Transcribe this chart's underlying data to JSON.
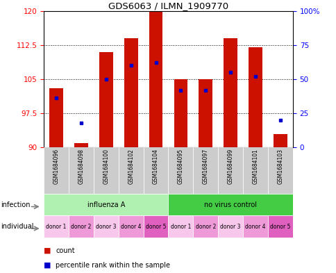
{
  "title": "GDS6063 / ILMN_1909770",
  "samples": [
    "GSM1684096",
    "GSM1684098",
    "GSM1684100",
    "GSM1684102",
    "GSM1684104",
    "GSM1684095",
    "GSM1684097",
    "GSM1684099",
    "GSM1684101",
    "GSM1684103"
  ],
  "count_values": [
    103,
    91,
    111,
    114,
    120,
    105,
    105,
    114,
    112,
    93
  ],
  "percentile_values": [
    36,
    18,
    50,
    60,
    62,
    42,
    42,
    55,
    52,
    20
  ],
  "y_min": 90,
  "y_max": 120,
  "y_left_ticks": [
    90,
    97.5,
    105,
    112.5,
    120
  ],
  "y_right_ticks": [
    0,
    25,
    50,
    75,
    100
  ],
  "infection_groups": [
    {
      "label": "influenza A",
      "start": 0,
      "end": 5,
      "color": "#b0f0b0"
    },
    {
      "label": "no virus control",
      "start": 5,
      "end": 10,
      "color": "#44cc44"
    }
  ],
  "individual_labels": [
    "donor 1",
    "donor 2",
    "donor 3",
    "donor 4",
    "donor 5",
    "donor 1",
    "donor 2",
    "donor 3",
    "donor 4",
    "donor 5"
  ],
  "pink_colors": [
    "#f8c8ec",
    "#ee99d8",
    "#f8c8ec",
    "#ee99d8",
    "#e060c0",
    "#f8c8ec",
    "#ee99d8",
    "#f8c8ec",
    "#ee99d8",
    "#e060c0"
  ],
  "bar_color": "#cc1100",
  "marker_color": "#0000cc",
  "gsm_bg": "#cccccc",
  "legend_items": [
    {
      "color": "#cc1100",
      "label": "count"
    },
    {
      "color": "#0000cc",
      "label": "percentile rank within the sample"
    }
  ]
}
